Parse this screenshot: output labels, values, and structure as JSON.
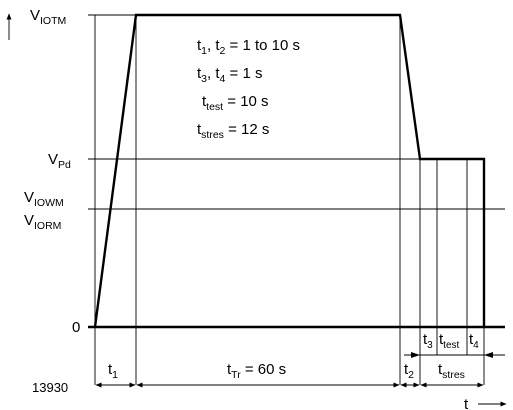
{
  "y_labels": {
    "v_iotm": {
      "main": "V",
      "sub": "IOTM"
    },
    "v_pd": {
      "main": "V",
      "sub": "Pd"
    },
    "v_iowm": {
      "main": "V",
      "sub": "IOWM"
    },
    "v_iorm": {
      "main": "V",
      "sub": "IORM"
    },
    "zero": "0"
  },
  "params": {
    "line1": {
      "a": "t",
      "a_sub": "1",
      "sep": ", t",
      "b_sub": "2",
      "rest": " = 1 to 10 s"
    },
    "line2": {
      "a": "t",
      "a_sub": "3",
      "sep": ", t",
      "b_sub": "4",
      "rest": " = 1 s"
    },
    "line3": {
      "a": "t",
      "a_sub": "test",
      "rest": " = 10 s"
    },
    "line4": {
      "a": "t",
      "a_sub": "stres",
      "rest": " = 12 s"
    }
  },
  "intervals": {
    "t1": {
      "main": "t",
      "sub": "1"
    },
    "ttr": {
      "main": "t",
      "sub": "Tr",
      "rest": " = 60 s"
    },
    "t2": {
      "main": "t",
      "sub": "2"
    },
    "t3": {
      "main": "t",
      "sub": "3"
    },
    "ttest": {
      "main": "t",
      "sub": "test"
    },
    "t4": {
      "main": "t",
      "sub": "4"
    },
    "tstres": {
      "main": "t",
      "sub": "stres"
    }
  },
  "figure_id": "13930",
  "time_axis_label": "t"
}
